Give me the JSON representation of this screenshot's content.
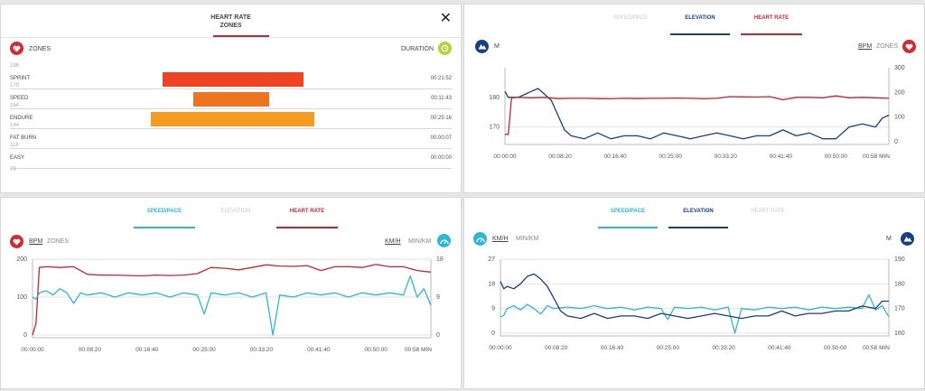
{
  "zones_panel": {
    "title_line1": "HEART RATE",
    "title_line2": "ZONES",
    "close_label": "✕",
    "zones_label": "ZONES",
    "duration_label": "DURATION",
    "top_bound": "196",
    "bottom_bound": "79",
    "zones": [
      {
        "name": "SPRINT",
        "bound": "179",
        "duration": "00:21:52",
        "color": "#ee4423",
        "start": 0.345,
        "end": 0.662
      },
      {
        "name": "SPEED",
        "bound": "164",
        "duration": "00:11:43",
        "color": "#ee7520",
        "start": 0.414,
        "end": 0.584
      },
      {
        "name": "ENDURE",
        "bound": "144",
        "duration": "00:25:16",
        "color": "#f39c1f",
        "start": 0.317,
        "end": 0.686
      },
      {
        "name": "FAT BURN",
        "bound": "118",
        "duration": "00:00:07",
        "color": "#f39c1f",
        "start": 0,
        "end": 0
      },
      {
        "name": "EASY",
        "bound": "",
        "duration": "00:00:00",
        "color": "#f39c1f",
        "start": 0,
        "end": 0
      }
    ]
  },
  "colors": {
    "heart_rate": "#c7262e",
    "elevation": "#173f86",
    "speed": "#2bb8d5",
    "zone_sprint": "#ee4423",
    "zone_speed": "#ee7520",
    "zone_endure": "#f39c1f"
  },
  "time_ticks": [
    "00:00:00",
    "00:08:20",
    "00:16:40",
    "00:25:00",
    "00:33:20",
    "00:41:40",
    "00:50:00",
    "00:58 MIN"
  ],
  "top_right": {
    "tabs": [
      {
        "label": "SPEED/PACE",
        "active": false
      },
      {
        "label": "ELEVATION",
        "active": true
      },
      {
        "label": "HEART RATE",
        "active": true
      }
    ],
    "left_unit": "M",
    "right_unit_a": "BPM",
    "right_unit_b": "ZONES",
    "left_ticks": [
      "180",
      "170"
    ],
    "right_ticks": [
      "300",
      "200",
      "100",
      "0"
    ]
  },
  "bottom_left": {
    "tabs": [
      {
        "label": "SPEED/PACE",
        "active": true
      },
      {
        "label": "ELEVATION",
        "active": false
      },
      {
        "label": "HEART RATE",
        "active": true
      }
    ],
    "left_unit_a": "BPM",
    "left_unit_b": "ZONES",
    "right_unit_a": "KM/H",
    "right_unit_b": "MIN/KM",
    "left_ticks": [
      "200",
      "100",
      "0"
    ],
    "right_ticks": [
      "18",
      "9",
      "0"
    ]
  },
  "bottom_right": {
    "tabs": [
      {
        "label": "SPEED/PACE",
        "active": true
      },
      {
        "label": "ELEVATION",
        "active": true
      },
      {
        "label": "HEART RATE",
        "active": false
      }
    ],
    "left_unit_a": "KM/H",
    "left_unit_b": "MIN/KM",
    "right_unit": "M",
    "left_ticks": [
      "27",
      "18",
      "9",
      "0"
    ],
    "right_ticks": [
      "190",
      "180",
      "170",
      "160"
    ]
  },
  "chart_data": [
    {
      "type": "line",
      "xlabel": "MIN",
      "x_range_min": [
        0,
        58
      ],
      "y_left": {
        "name": "Elevation (M)",
        "ylim": [
          165,
          190
        ]
      },
      "y_right": {
        "name": "Heart rate (BPM)",
        "ylim": [
          0,
          300
        ]
      },
      "series": [
        {
          "name": "ELEVATION",
          "axis": "left",
          "x": [
            0,
            0.5,
            1,
            2,
            3,
            4,
            5,
            6,
            7,
            8,
            9,
            10,
            12,
            14,
            16,
            18,
            20,
            22,
            24,
            26,
            28,
            30,
            32,
            34,
            36,
            38,
            40,
            42,
            44,
            46,
            48,
            50,
            52,
            54,
            56,
            57,
            58
          ],
          "y": [
            182,
            180,
            180,
            180,
            181,
            182,
            183,
            181,
            179,
            174,
            169,
            167,
            166,
            168,
            166,
            167,
            167,
            166,
            168,
            167,
            166,
            167,
            168,
            167,
            166,
            167,
            167,
            169,
            167,
            168,
            166,
            166,
            170,
            171,
            170,
            173,
            174
          ]
        },
        {
          "name": "HEART RATE",
          "axis": "right",
          "x": [
            0,
            0.5,
            1,
            2,
            4,
            6,
            8,
            10,
            12,
            14,
            16,
            18,
            20,
            22,
            24,
            26,
            28,
            30,
            32,
            34,
            36,
            38,
            40,
            42,
            44,
            46,
            48,
            50,
            52,
            54,
            56,
            58
          ],
          "y": [
            30,
            30,
            178,
            180,
            178,
            180,
            175,
            176,
            176,
            175,
            174,
            176,
            175,
            176,
            176,
            177,
            176,
            174,
            176,
            183,
            182,
            181,
            183,
            170,
            180,
            180,
            178,
            186,
            178,
            180,
            178,
            176
          ]
        }
      ]
    },
    {
      "type": "line",
      "xlabel": "MIN",
      "x_range_min": [
        0,
        58
      ],
      "y_left": {
        "name": "Heart rate (BPM)",
        "ylim": [
          0,
          200
        ]
      },
      "y_right": {
        "name": "Speed (KM/H)",
        "ylim": [
          0,
          18
        ]
      },
      "series": [
        {
          "name": "HEART RATE",
          "axis": "left",
          "x": [
            0,
            0.5,
            1,
            2,
            4,
            6,
            8,
            10,
            12,
            14,
            16,
            18,
            20,
            22,
            24,
            26,
            28,
            30,
            32,
            34,
            36,
            38,
            40,
            42,
            44,
            46,
            48,
            50,
            52,
            54,
            56,
            58
          ],
          "y": [
            0,
            30,
            178,
            180,
            178,
            180,
            160,
            158,
            158,
            157,
            156,
            158,
            157,
            158,
            162,
            178,
            176,
            172,
            178,
            185,
            182,
            181,
            183,
            170,
            180,
            180,
            178,
            186,
            180,
            180,
            170,
            166
          ]
        },
        {
          "name": "SPEED/PACE",
          "axis": "right",
          "x": [
            0,
            0.5,
            1,
            2,
            3,
            4,
            5,
            6,
            7,
            8,
            10,
            12,
            14,
            16,
            18,
            20,
            22,
            24,
            25,
            26,
            28,
            30,
            32,
            34,
            35,
            36,
            38,
            40,
            42,
            44,
            46,
            48,
            50,
            52,
            54,
            55,
            56,
            57,
            58
          ],
          "y": [
            9,
            8.5,
            10,
            10.5,
            9.5,
            11,
            10,
            7.5,
            10,
            9.5,
            10,
            9,
            10,
            9.5,
            10,
            9,
            10,
            9.5,
            5,
            10,
            9.5,
            10,
            9,
            10,
            0,
            9.5,
            9,
            10,
            9.5,
            10,
            9,
            10,
            9.5,
            10,
            9.5,
            14,
            9,
            11,
            7
          ]
        }
      ]
    },
    {
      "type": "line",
      "xlabel": "MIN",
      "x_range_min": [
        0,
        58
      ],
      "y_left": {
        "name": "Speed (KM/H)",
        "ylim": [
          0,
          27
        ]
      },
      "y_right": {
        "name": "Elevation (M)",
        "ylim": [
          160,
          190
        ]
      },
      "series": [
        {
          "name": "SPEED/PACE",
          "axis": "left",
          "x": [
            0,
            0.5,
            1,
            2,
            3,
            4,
            5,
            6,
            7,
            8,
            10,
            12,
            14,
            16,
            18,
            20,
            22,
            24,
            25,
            26,
            28,
            30,
            32,
            34,
            35,
            36,
            38,
            40,
            42,
            44,
            46,
            48,
            50,
            52,
            54,
            55,
            56,
            57,
            58
          ],
          "y": [
            6,
            6.5,
            9,
            10,
            8.5,
            10.5,
            9,
            7,
            10,
            9,
            9.5,
            9,
            10,
            9,
            9.5,
            8.5,
            9.5,
            9,
            5,
            9.5,
            9,
            9.5,
            8.5,
            9.5,
            0,
            9,
            8.5,
            9.5,
            9,
            9.5,
            8.5,
            9.5,
            9,
            9.5,
            9,
            14,
            8.5,
            10,
            6
          ]
        },
        {
          "name": "ELEVATION",
          "axis": "right",
          "x": [
            0,
            0.5,
            1,
            2,
            3,
            4,
            5,
            6,
            7,
            8,
            9,
            10,
            12,
            14,
            16,
            18,
            20,
            22,
            24,
            26,
            28,
            30,
            32,
            34,
            36,
            38,
            40,
            42,
            44,
            46,
            48,
            50,
            52,
            54,
            56,
            57,
            58
          ],
          "y": [
            181,
            178,
            179,
            178,
            180,
            183,
            184,
            182,
            179,
            174,
            169,
            167,
            166,
            168,
            166,
            167,
            167,
            166,
            168,
            167,
            166,
            167,
            168,
            167,
            166,
            167,
            167,
            169,
            167,
            168,
            168,
            169,
            169,
            171,
            170,
            173,
            173
          ]
        }
      ]
    }
  ]
}
